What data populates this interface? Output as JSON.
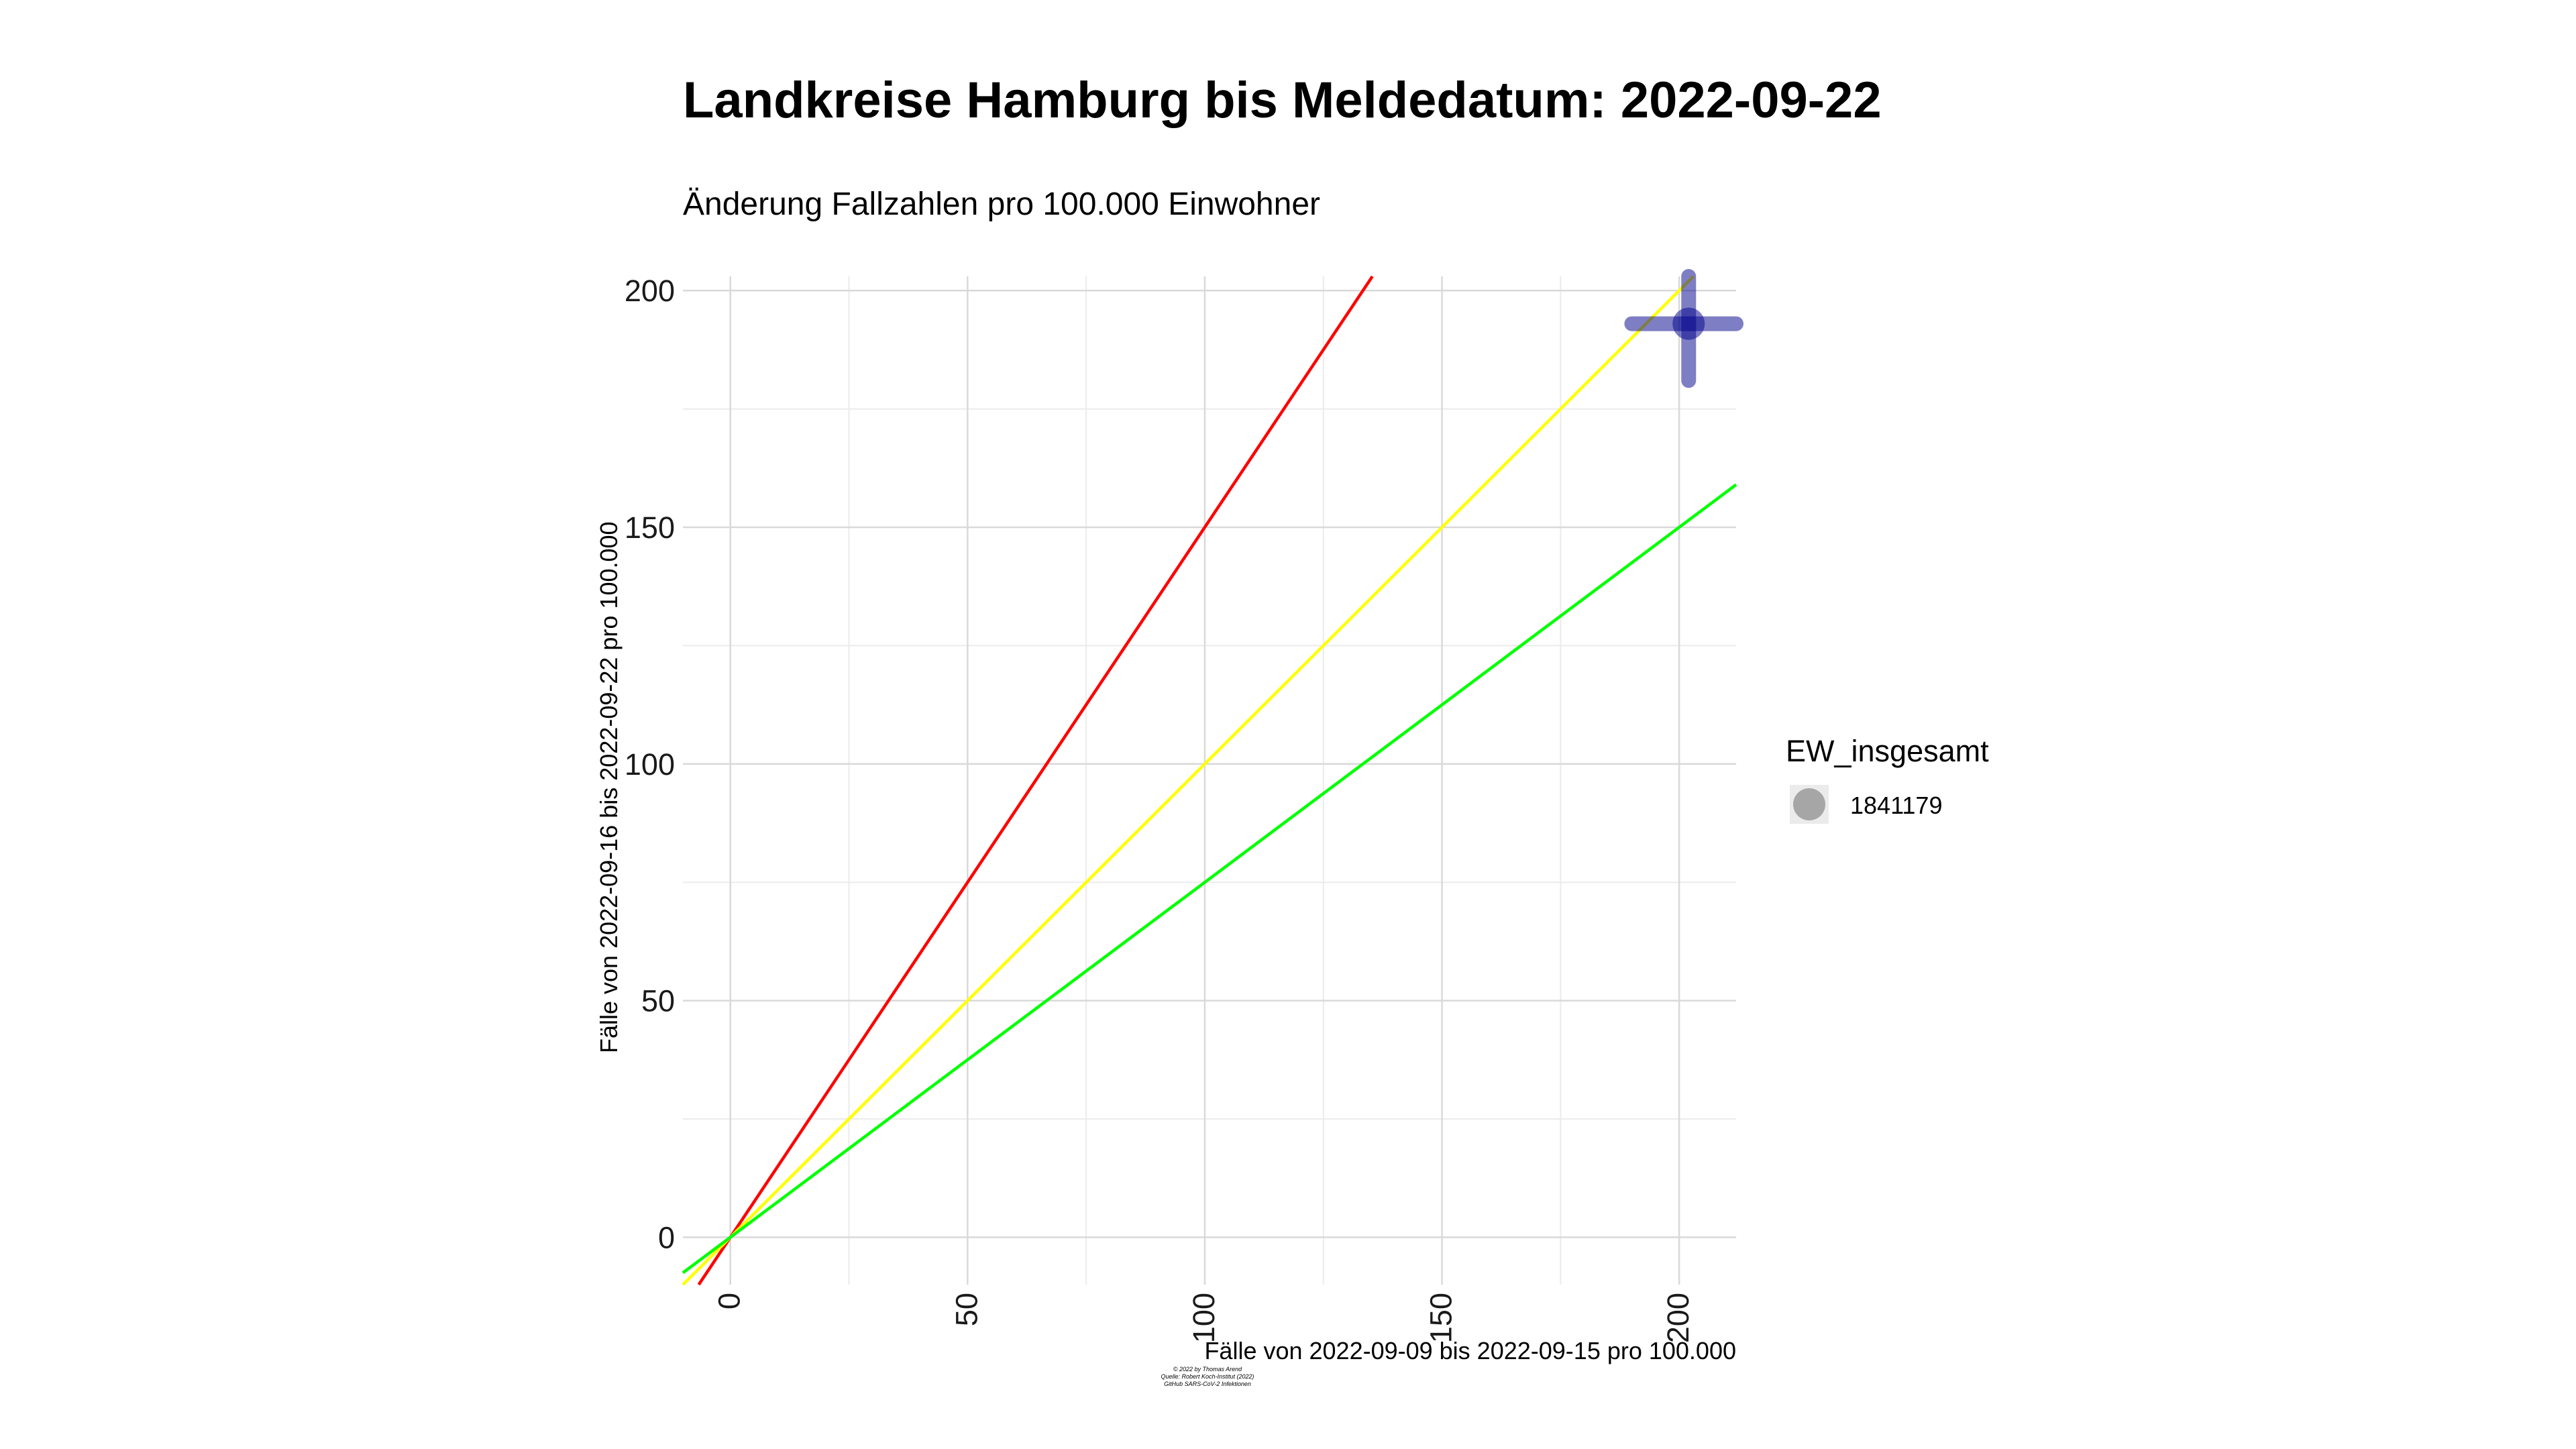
{
  "chart_data": {
    "type": "scatter",
    "title": "Landkreise Hamburg bis Meldedatum: 2022-09-22",
    "subtitle": "Änderung Fallzahlen pro 100.000 Einwohner",
    "xlabel": "Fälle von 2022-09-09 bis 2022-09-15 pro 100.000",
    "ylabel": "Fälle von 2022-09-16 bis 2022-09-22 pro 100.000",
    "xlim": [
      -10,
      212
    ],
    "ylim": [
      -10,
      203
    ],
    "x_ticks": [
      0,
      50,
      100,
      150,
      200
    ],
    "y_ticks": [
      0,
      50,
      100,
      150,
      200
    ],
    "grid": true,
    "reference_lines": [
      {
        "slope": 1.5,
        "color": "#ff0000"
      },
      {
        "slope": 1.0,
        "color": "#ffff00"
      },
      {
        "slope": 0.75,
        "color": "#00ff00"
      }
    ],
    "points": [
      {
        "x": 202,
        "y": 193,
        "x_error": [
          190,
          212
        ],
        "y_error": [
          181,
          203
        ],
        "color": "#00008b"
      }
    ],
    "legend": {
      "title": "EW_insgesamt",
      "placement": "right",
      "entries": [
        {
          "label": "1841179",
          "color": "#a6a6a6"
        }
      ]
    },
    "caption": [
      "© 2022 by Thomas Arend",
      "Quelle: Robert Koch-Institut (2022)",
      "GitHub SARS-CoV-2 Infektionen"
    ]
  }
}
